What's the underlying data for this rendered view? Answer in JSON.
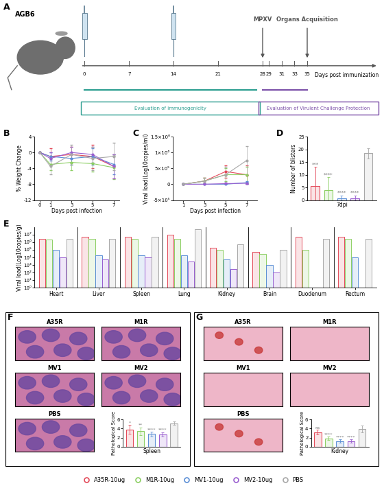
{
  "schematic": {
    "panel_label": "A",
    "strain": "AGB6",
    "injection_days": [
      0,
      14
    ],
    "events": [
      {
        "label": "MPXV",
        "day": 28
      },
      {
        "label": "Organs Acquisition",
        "day": 35
      }
    ],
    "ticks": [
      0,
      7,
      14,
      21,
      28,
      29,
      31,
      33,
      35
    ],
    "axis_label": "Days post immunization",
    "phases": [
      {
        "label": "Evaluation of immunogenicity",
        "start": 0,
        "end": 27,
        "color": "#2a9d8f"
      },
      {
        "label": "Evaluation of Virulent Challenge Protection",
        "start": 28,
        "end": 35,
        "color": "#7b4fa8"
      }
    ]
  },
  "chart_data": [
    {
      "type": "line",
      "panel_label": "B",
      "x_label": "Days post infection",
      "y_label": "% Weight Change",
      "x": [
        0,
        1,
        3,
        5,
        7
      ],
      "xlim": [
        -0.5,
        7.5
      ],
      "xticks": [
        0,
        1,
        3,
        5,
        7
      ],
      "ylim": [
        -12,
        4
      ],
      "yticks": [
        -12,
        -8,
        -4,
        0,
        4
      ],
      "series": [
        {
          "color": "#e34a5a",
          "values": [
            0,
            -1.0,
            -0.5,
            -1.0,
            -3.5
          ],
          "errors": [
            0,
            2.0,
            2.0,
            3.0,
            3.0
          ]
        },
        {
          "color": "#8ccf63",
          "values": [
            0,
            -3.0,
            -2.5,
            -2.8,
            -3.8
          ],
          "errors": [
            0,
            1.5,
            2.0,
            2.0,
            3.0
          ]
        },
        {
          "color": "#5b8fd6",
          "values": [
            0,
            -1.0,
            -1.5,
            -1.0,
            -3.0
          ],
          "errors": [
            0,
            1.0,
            1.5,
            2.0,
            2.5
          ]
        },
        {
          "color": "#9a5fd0",
          "values": [
            0,
            -1.5,
            0.0,
            -0.5,
            -3.5
          ],
          "errors": [
            0,
            1.5,
            1.5,
            2.0,
            3.0
          ]
        },
        {
          "color": "#a8a8a8",
          "values": [
            0,
            -3.5,
            -0.5,
            -1.5,
            -1.0
          ],
          "errors": [
            0,
            2.0,
            2.5,
            3.0,
            3.5
          ]
        }
      ]
    },
    {
      "type": "line",
      "panel_label": "C",
      "x_label": "Days post infection",
      "y_label": "Viral load(Log10copies/ml)",
      "x": [
        1,
        3,
        5,
        7
      ],
      "xlim": [
        0,
        8
      ],
      "xticks": [
        1,
        3,
        5,
        7
      ],
      "ylim": [
        -500000,
        1500000
      ],
      "yticks": [
        {
          "value": -500000,
          "label": "-5×10⁵"
        },
        0,
        {
          "value": 500000,
          "label": "5×10⁵"
        },
        {
          "value": 1000000,
          "label": "1×10⁶"
        },
        {
          "value": 1500000,
          "label": "1.5×10⁶"
        }
      ],
      "series": [
        {
          "color": "#e34a5a",
          "values": [
            0,
            100000,
            400000,
            300000
          ],
          "errors": [
            0,
            100000,
            200000,
            300000
          ]
        },
        {
          "color": "#8ccf63",
          "values": [
            0,
            100000,
            300000,
            300000
          ],
          "errors": [
            0,
            100000,
            200000,
            250000
          ]
        },
        {
          "color": "#5b8fd6",
          "values": [
            0,
            0,
            0,
            50000
          ],
          "errors": [
            0,
            0,
            0,
            50000
          ]
        },
        {
          "color": "#9a5fd0",
          "values": [
            0,
            0,
            20000,
            30000
          ],
          "errors": [
            0,
            0,
            20000,
            30000
          ]
        },
        {
          "color": "#a8a8a8",
          "values": [
            0,
            100000,
            300000,
            750000
          ],
          "errors": [
            0,
            100000,
            250000,
            450000
          ]
        }
      ]
    },
    {
      "type": "bar",
      "panel_label": "D",
      "x_label": "7dpi",
      "y_label": "Number of blisters",
      "values": [
        5.5,
        4.0,
        0.8,
        0.8,
        18.5
      ],
      "errors": [
        7.5,
        5.0,
        1.0,
        1.0,
        2.0
      ],
      "colors": [
        "#e34a5a",
        "#8ccf63",
        "#5b8fd6",
        "#9a5fd0",
        "#a8a8a8"
      ],
      "annotations": [
        "***",
        "****",
        "****",
        "****",
        null
      ],
      "ylim": [
        0,
        25
      ],
      "yticks": [
        0,
        5,
        10,
        15,
        20,
        25
      ],
      "tick_labels": "y"
    },
    {
      "type": "bar",
      "panel_label": "E",
      "y_label": "Viral load(Log10copies/g)",
      "log": "y",
      "legend": "lower center",
      "categories": [
        "Heart",
        "Liver",
        "Spleen",
        "Lung",
        "Kidney",
        "Brain",
        "Duodenum",
        "Rectum"
      ],
      "ylim": [
        1,
        100000000
      ],
      "yticks": [
        {
          "value": 1,
          "label": "10⁰"
        },
        {
          "value": 10,
          "label": "10¹"
        },
        {
          "value": 100,
          "label": "10²"
        },
        {
          "value": 1000,
          "label": "10³"
        },
        {
          "value": 10000,
          "label": "10⁴"
        },
        {
          "value": 100000,
          "label": "10⁵"
        },
        {
          "value": 1000000,
          "label": "10⁶"
        },
        {
          "value": 10000000,
          "label": "10⁷"
        }
      ],
      "series": [
        {
          "name": "A35R-10ug",
          "color": "#e34a5a",
          "values": [
            3000000,
            5000000,
            5000000,
            10000000,
            200000,
            50000,
            5000000,
            5000000
          ]
        },
        {
          "name": "M1R-10ug",
          "color": "#8ccf63",
          "values": [
            2000000,
            3000000,
            3000000,
            3000000,
            100000,
            30000,
            100000,
            3000000
          ]
        },
        {
          "name": "MV1-10ug",
          "color": "#5b8fd6",
          "values": [
            100000,
            20000,
            20000,
            20000,
            5000,
            1000,
            1,
            10000
          ]
        },
        {
          "name": "MV2-10ug",
          "color": "#9a5fd0",
          "values": [
            10000,
            5000,
            10000,
            3000,
            300,
            100,
            1,
            1
          ]
        },
        {
          "name": "PBS",
          "color": "#a8a8a8",
          "values": [
            3000000,
            3000000,
            5000000,
            50000000,
            500000,
            100000,
            3000000,
            3000000
          ]
        }
      ]
    },
    {
      "type": "bar",
      "x_label": "Spleen",
      "y_label": "Pathological Score",
      "values": [
        3.8,
        3.4,
        2.8,
        2.7,
        5.2
      ],
      "errors": [
        1.0,
        0.9,
        0.5,
        0.5,
        0.4
      ],
      "colors": [
        "#e34a5a",
        "#8ccf63",
        "#5b8fd6",
        "#9a5fd0",
        "#a8a8a8"
      ],
      "annotations": [
        "*",
        "**",
        "****",
        "****",
        null
      ],
      "ylim": [
        0,
        6
      ],
      "yticks": [
        0,
        2,
        4,
        6
      ],
      "tick_labels": "y"
    },
    {
      "type": "bar",
      "x_label": "Kidney",
      "y_label": "Pathological Score",
      "values": [
        3.2,
        1.8,
        1.2,
        1.2,
        3.9
      ],
      "errors": [
        0.5,
        0.4,
        0.4,
        0.4,
        0.8
      ],
      "colors": [
        "#e34a5a",
        "#8ccf63",
        "#5b8fd6",
        "#9a5fd0",
        "#a8a8a8"
      ],
      "annotations": [
        "ns",
        "****",
        "****",
        "****",
        null
      ],
      "ylim": [
        0,
        6
      ],
      "yticks": [
        0,
        2,
        4,
        6
      ],
      "tick_labels": "y"
    }
  ],
  "micrographs": [
    {
      "panel_label": "F",
      "labels": [
        "A35R",
        "M1R",
        "MV1",
        "MV2",
        "PBS"
      ]
    },
    {
      "panel_label": "G",
      "labels": [
        "A35R",
        "M1R",
        "MV1",
        "MV2",
        "PBS"
      ]
    }
  ]
}
